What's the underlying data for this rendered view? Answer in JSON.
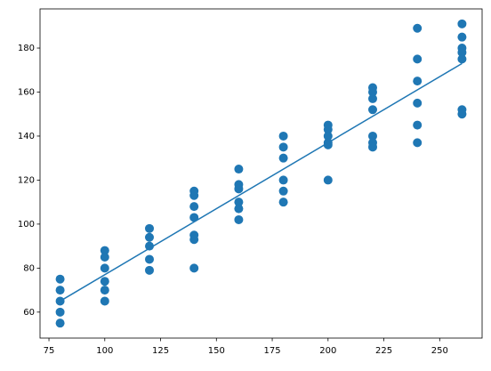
{
  "chart_data": {
    "type": "scatter",
    "color": "#1f77b4",
    "x": [
      80,
      80,
      80,
      80,
      80,
      100,
      100,
      100,
      100,
      100,
      100,
      120,
      120,
      120,
      120,
      120,
      140,
      140,
      140,
      140,
      140,
      140,
      140,
      160,
      160,
      160,
      160,
      160,
      160,
      180,
      180,
      180,
      180,
      180,
      180,
      200,
      200,
      200,
      200,
      200,
      200,
      220,
      220,
      220,
      220,
      220,
      220,
      220,
      240,
      240,
      240,
      240,
      240,
      240,
      260,
      260,
      260,
      260,
      260,
      260,
      260
    ],
    "y": [
      75,
      70,
      65,
      60,
      55,
      88,
      85,
      80,
      74,
      70,
      65,
      98,
      94,
      90,
      84,
      79,
      115,
      113,
      108,
      103,
      95,
      93,
      80,
      125,
      118,
      116,
      110,
      107,
      102,
      140,
      135,
      130,
      120,
      115,
      110,
      145,
      143,
      140,
      137,
      136,
      120,
      162,
      160,
      157,
      152,
      140,
      137,
      135,
      189,
      175,
      165,
      155,
      145,
      137,
      191,
      185,
      180,
      178,
      175,
      152,
      150
    ],
    "line": {
      "x": [
        80,
        260
      ],
      "y": [
        65,
        173
      ]
    },
    "xlim": [
      71,
      269
    ],
    "ylim": [
      48.2,
      197.8
    ],
    "xticks": [
      75,
      100,
      125,
      150,
      175,
      200,
      225,
      250
    ],
    "yticks": [
      60,
      80,
      100,
      120,
      140,
      160,
      180
    ]
  }
}
